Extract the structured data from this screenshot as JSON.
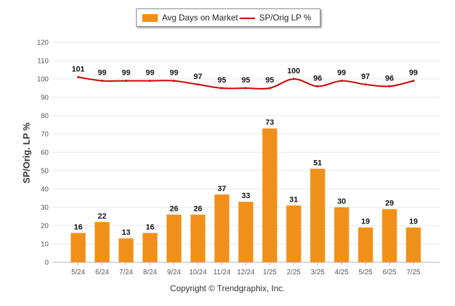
{
  "chart_data": {
    "type": "bar",
    "categories": [
      "5/24",
      "6/24",
      "7/24",
      "8/24",
      "9/24",
      "10/24",
      "11/24",
      "12/24",
      "1/25",
      "2/25",
      "3/25",
      "4/25",
      "5/25",
      "6/25",
      "7/25"
    ],
    "series": [
      {
        "name": "Avg Days on Market",
        "type": "bar",
        "color": "#f0901a",
        "values": [
          16,
          22,
          13,
          16,
          26,
          26,
          37,
          33,
          73,
          31,
          51,
          30,
          19,
          29,
          19
        ]
      },
      {
        "name": "SP/Orig LP %",
        "type": "line",
        "color": "#cc0000",
        "values": [
          101,
          99,
          99,
          99,
          99,
          97,
          95,
          95,
          95,
          100,
          96,
          99,
          97,
          96,
          99
        ]
      }
    ],
    "ylabel": "SP/Orig. LP %",
    "ylim": [
      0,
      120
    ],
    "yticks": [
      0,
      10,
      20,
      30,
      40,
      50,
      60,
      70,
      80,
      90,
      100,
      110,
      120
    ],
    "grid": true,
    "legend_position": "top-center"
  },
  "legend": {
    "bar_label": "Avg Days on Market",
    "line_label": "SP/Orig LP %"
  },
  "footer": {
    "copyright": "Copyright © Trendgraphix, Inc."
  }
}
